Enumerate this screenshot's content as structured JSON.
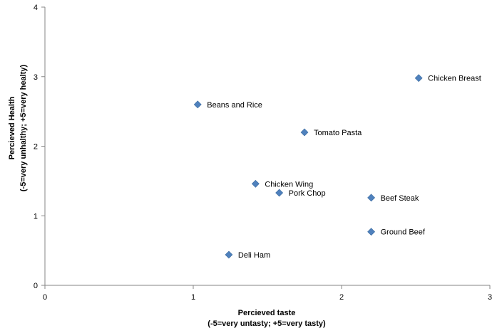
{
  "chart_data": {
    "type": "scatter",
    "title": "",
    "xlabel": "Percieved taste",
    "xlabel_sub": "(-5=very untasty; +5=very tasty)",
    "ylabel": "Percieved Health",
    "ylabel_sub": "(-5=very unhalthy; +5=very healty)",
    "xlim": [
      0,
      3
    ],
    "ylim": [
      0,
      4
    ],
    "xticks": [
      "0",
      "1",
      "2",
      "3"
    ],
    "yticks": [
      "0",
      "1",
      "2",
      "3",
      "4"
    ],
    "grid": false,
    "legend": "none",
    "marker_color": "#4F81BD",
    "points": [
      {
        "label": "Chicken Breast",
        "x": 2.52,
        "y": 2.98
      },
      {
        "label": "Beans and Rice",
        "x": 1.03,
        "y": 2.6
      },
      {
        "label": "Tomato Pasta",
        "x": 1.75,
        "y": 2.2
      },
      {
        "label": "Chicken Wing",
        "x": 1.42,
        "y": 1.46
      },
      {
        "label": "Pork Chop",
        "x": 1.58,
        "y": 1.33
      },
      {
        "label": "Beef Steak",
        "x": 2.2,
        "y": 1.26
      },
      {
        "label": "Ground Beef",
        "x": 2.2,
        "y": 0.77
      },
      {
        "label": "Deli Ham",
        "x": 1.24,
        "y": 0.44
      }
    ]
  }
}
